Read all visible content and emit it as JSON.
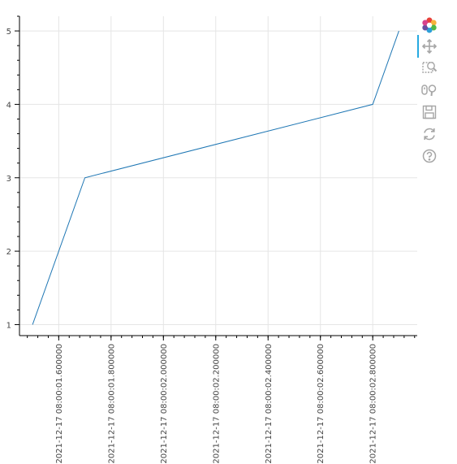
{
  "colors": {
    "line": "#1f77b4",
    "grid": "#e5e5e5",
    "axis": "#000000",
    "tool_icon": "#a6a6a6",
    "active_tool": "#26aae1"
  },
  "toolbar": {
    "tools": [
      {
        "name": "bokeh-logo-icon",
        "active": false
      },
      {
        "name": "pan-tool-icon",
        "active": true
      },
      {
        "name": "box-zoom-tool-icon",
        "active": false
      },
      {
        "name": "wheel-zoom-tool-icon",
        "active": false
      },
      {
        "name": "save-tool-icon",
        "active": false
      },
      {
        "name": "reset-tool-icon",
        "active": false
      },
      {
        "name": "help-tool-icon",
        "active": false
      }
    ]
  },
  "chart_data": {
    "type": "line",
    "title": "",
    "xlabel": "",
    "ylabel": "",
    "x_is_datetime": true,
    "x": [
      "2021-12-17 08:00:01.500000",
      "2021-12-17 08:00:01.700000",
      "2021-12-17 08:00:02.800000",
      "2021-12-17 08:00:02.900000"
    ],
    "y": [
      1,
      3,
      4,
      5
    ],
    "xlim": [
      "2021-12-17 08:00:01.45",
      "2021-12-17 08:00:02.97"
    ],
    "ylim": [
      0.85,
      5.2
    ],
    "yticks": [
      1,
      2,
      3,
      4,
      5
    ],
    "xticks": [
      "2021-12-17 08:00:01.600000",
      "2021-12-17 08:00:01.800000",
      "2021-12-17 08:00:02.000000",
      "2021-12-17 08:00:02.200000",
      "2021-12-17 08:00:02.400000",
      "2021-12-17 08:00:02.600000",
      "2021-12-17 08:00:02.800000"
    ],
    "grid": true,
    "legend": "none"
  }
}
